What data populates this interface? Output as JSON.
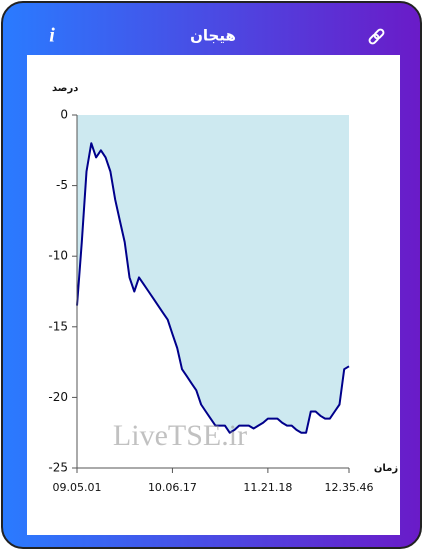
{
  "header": {
    "title": "هیجان",
    "info": "i"
  },
  "watermark": "LiveTSE.ir",
  "chart_data": {
    "type": "area",
    "y_label": "درصد",
    "x_label": "زمان",
    "categories": [
      "09.05.01",
      null,
      null,
      null,
      null,
      null,
      null,
      null,
      null,
      null,
      null,
      null,
      null,
      null,
      null,
      null,
      null,
      null,
      null,
      null,
      "10.06.17",
      null,
      null,
      null,
      null,
      null,
      null,
      null,
      null,
      null,
      null,
      null,
      null,
      null,
      null,
      null,
      null,
      null,
      null,
      null,
      "11.21.18",
      null,
      null,
      null,
      null,
      null,
      null,
      null,
      null,
      null,
      null,
      null,
      null,
      null,
      null,
      null,
      null,
      "12.35.46"
    ],
    "series": [
      {
        "color": "#00008b",
        "fill": "#cde9f0",
        "values": [
          -13.5,
          -9,
          -4,
          -2,
          -3,
          -2.5,
          -3,
          -4,
          -6,
          -7.5,
          -9,
          -11.5,
          -12.5,
          -11.5,
          -12,
          -12.5,
          -13,
          -13.5,
          -14,
          -14.5,
          -15.5,
          -16.5,
          -18,
          -18.5,
          -19,
          -19.5,
          -20.5,
          -21,
          -21.5,
          -22,
          -22,
          -22,
          -22.5,
          -22.3,
          -22,
          -22,
          -22,
          -22.2,
          -22,
          -21.8,
          -21.5,
          -21.5,
          -21.5,
          -21.8,
          -22,
          -22,
          -22.3,
          -22.5,
          -22.5,
          -21,
          -21,
          -21.3,
          -21.5,
          -21.5,
          -21,
          -20.5,
          -18,
          -17.8
        ]
      }
    ],
    "ylim": [
      -25,
      0
    ],
    "yticks": [
      0,
      -5,
      -10,
      -15,
      -20,
      -25
    ]
  }
}
